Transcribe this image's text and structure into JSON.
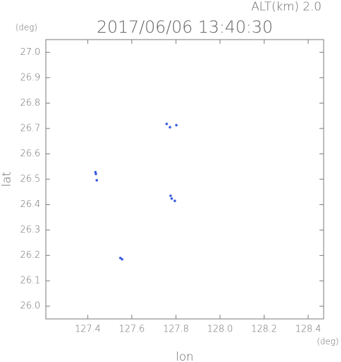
{
  "chart_data": {
    "type": "scatter",
    "title": "2017/06/06 13:40:30",
    "subtitle": "ALT(km) 2.0",
    "y_unit": "(deg)",
    "x_unit": "(deg)",
    "x_label": "lon",
    "y_label": "lat",
    "xlim": [
      127.21,
      128.47
    ],
    "ylim": [
      25.95,
      27.05
    ],
    "xticks": [
      {
        "value": 127.4,
        "label": "127.4"
      },
      {
        "value": 127.6,
        "label": "127.6"
      },
      {
        "value": 127.8,
        "label": "127.8"
      },
      {
        "value": 128.0,
        "label": "128.0"
      },
      {
        "value": 128.2,
        "label": "128.2"
      },
      {
        "value": 128.4,
        "label": "128.4"
      }
    ],
    "yticks": [
      {
        "value": 26.0,
        "label": "26.0"
      },
      26.1,
      26.2,
      26.3,
      26.4,
      26.5,
      26.6,
      26.7,
      26.8,
      26.9,
      {
        "value": 27.0,
        "label": "27.0"
      }
    ],
    "series": [
      {
        "color": "#3a5ce0",
        "x": [
          127.435,
          127.437,
          127.441,
          127.548,
          127.556,
          127.758,
          127.773,
          127.802,
          127.776,
          127.781,
          127.795
        ],
        "values": [
          26.528,
          26.521,
          26.496,
          26.19,
          26.185,
          26.718,
          26.705,
          26.713,
          26.435,
          26.424,
          26.415
        ]
      }
    ]
  }
}
